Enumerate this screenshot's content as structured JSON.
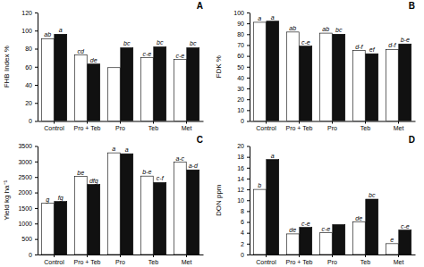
{
  "chart_data": [
    {
      "type": "bar",
      "title": "A",
      "ylabel": "FHB Index %",
      "categories": [
        "Control",
        "Pro + Teb",
        "Pro",
        "Teb",
        "Met"
      ],
      "series": [
        {
          "color": "white",
          "values": [
            91,
            73,
            59,
            70,
            68
          ],
          "labels": [
            "ab",
            "cd",
            null,
            "c-e",
            "c-e"
          ]
        },
        {
          "color": "#111111",
          "values": [
            96,
            63,
            81,
            82,
            81
          ],
          "labels": [
            "a",
            "de",
            "bc",
            "bc",
            "bc"
          ]
        }
      ],
      "ylim": [
        0,
        120
      ],
      "yticks": [
        0,
        20,
        40,
        60,
        80,
        100,
        120
      ],
      "grid": false
    },
    {
      "type": "bar",
      "title": "B",
      "ylabel": "FDK %",
      "categories": [
        "Control",
        "Pro + Teb",
        "Pro",
        "Teb",
        "Met"
      ],
      "series": [
        {
          "color": "white",
          "values": [
            91,
            82,
            81,
            65,
            66
          ],
          "labels": [
            "a",
            "ab",
            "ab",
            "d-f",
            "d-f"
          ]
        },
        {
          "color": "#111111",
          "values": [
            92,
            69,
            80,
            62,
            71
          ],
          "labels": [
            "a",
            "c-e",
            "bc",
            "ef",
            "b-e"
          ]
        }
      ],
      "ylim": [
        0,
        100
      ],
      "yticks": [
        0,
        10,
        20,
        30,
        40,
        50,
        60,
        70,
        80,
        90,
        100
      ],
      "grid": false
    },
    {
      "type": "bar",
      "title": "C",
      "ylabel": "Yield kg ha⁻¹",
      "categories": [
        "Control",
        "Pro + Teb",
        "Pro",
        "Teb",
        "Met"
      ],
      "series": [
        {
          "color": "white",
          "values": [
            1650,
            2520,
            3280,
            2530,
            2980
          ],
          "labels": [
            "g",
            "be",
            "a",
            "b-e",
            "a-c"
          ]
        },
        {
          "color": "#111111",
          "values": [
            1710,
            2260,
            3250,
            2320,
            2730
          ],
          "labels": [
            "fg",
            "dfg",
            "a",
            "c-f",
            "a-d"
          ]
        }
      ],
      "ylim": [
        0,
        3500
      ],
      "yticks": [
        0,
        500,
        1000,
        1500,
        2000,
        2500,
        3000,
        3500
      ],
      "grid": false
    },
    {
      "type": "bar",
      "title": "D",
      "ylabel": "DON ppm",
      "categories": [
        "Control",
        "Pro + Teb",
        "Pro",
        "Teb",
        "Met"
      ],
      "series": [
        {
          "color": "white",
          "values": [
            12,
            3.8,
            4.0,
            6.0,
            2.0
          ],
          "labels": [
            "b",
            "de",
            "c-e",
            "de",
            "e"
          ]
        },
        {
          "color": "#111111",
          "values": [
            17.5,
            5.0,
            5.5,
            10.2,
            4.5
          ],
          "labels": [
            "a",
            "c-e",
            null,
            "bc",
            "c-e"
          ]
        }
      ],
      "ylim": [
        0,
        20
      ],
      "yticks": [
        0,
        2,
        4,
        6,
        8,
        10,
        12,
        14,
        16,
        18,
        20
      ],
      "grid": false
    }
  ]
}
